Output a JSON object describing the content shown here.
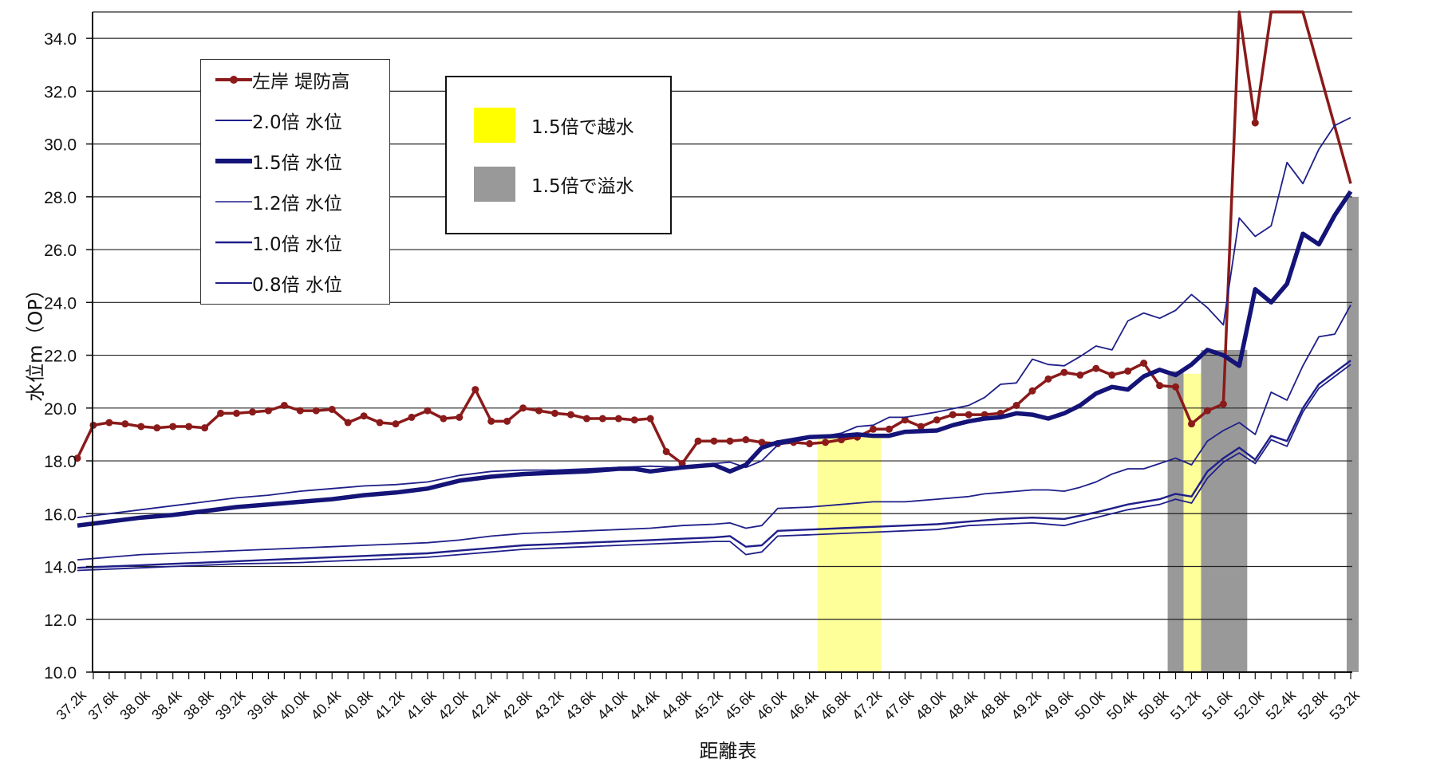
{
  "chart_data": {
    "type": "line",
    "xlabel": "距離表",
    "ylabel": "水位m（OP）",
    "ylim": [
      10.0,
      35.0
    ],
    "yticks": [
      "10.0",
      "12.0",
      "14.0",
      "16.0",
      "18.0",
      "20.0",
      "22.0",
      "24.0",
      "26.0",
      "28.0",
      "30.0",
      "32.0",
      "34.0"
    ],
    "categories": [
      "37.2k",
      "37.6k",
      "38.0k",
      "38.4k",
      "38.8k",
      "39.2k",
      "39.6k",
      "40.0k",
      "40.4k",
      "40.8k",
      "41.2k",
      "41.6k",
      "42.0k",
      "42.4k",
      "42.8k",
      "43.2k",
      "43.6k",
      "44.0k",
      "44.4k",
      "44.8k",
      "45.2k",
      "45.6k",
      "46.0k",
      "46.4k",
      "46.8k",
      "47.2k",
      "47.6k",
      "48.0k",
      "48.4k",
      "48.8k",
      "49.2k",
      "49.6k",
      "50.0k",
      "50.4k",
      "50.8k",
      "51.2k",
      "51.6k",
      "52.0k",
      "52.4k",
      "52.8k",
      "53.2k"
    ],
    "grid": true,
    "series": [
      {
        "name": "左岸 堤防高",
        "color": "#8b1a1a",
        "style": "marker",
        "x": [
          37.2,
          37.4,
          37.6,
          37.8,
          38.0,
          38.2,
          38.4,
          38.6,
          38.8,
          39.0,
          39.2,
          39.4,
          39.6,
          39.8,
          40.0,
          40.2,
          40.4,
          40.6,
          40.8,
          41.0,
          41.2,
          41.4,
          41.6,
          41.8,
          42.0,
          42.2,
          42.4,
          42.6,
          42.8,
          43.0,
          43.2,
          43.4,
          43.6,
          43.8,
          44.0,
          44.2,
          44.4,
          44.6,
          44.8,
          45.0,
          45.2,
          45.4,
          45.6,
          45.8,
          46.0,
          46.2,
          46.4,
          46.6,
          46.8,
          47.0,
          47.2,
          47.4,
          47.6,
          47.8,
          48.0,
          48.2,
          48.4,
          48.6,
          48.8,
          49.0,
          49.2,
          49.4,
          49.6,
          49.8,
          50.0,
          50.2,
          50.4,
          50.6,
          50.8,
          51.0,
          51.2,
          51.4,
          51.6,
          51.8,
          52.0,
          52.2,
          52.4,
          52.6,
          53.2
        ],
        "values": [
          18.1,
          19.35,
          19.45,
          19.4,
          19.3,
          19.25,
          19.3,
          19.3,
          19.25,
          19.8,
          19.8,
          19.85,
          19.9,
          20.1,
          19.9,
          19.9,
          19.95,
          19.45,
          19.7,
          19.45,
          19.4,
          19.65,
          19.9,
          19.6,
          19.65,
          20.7,
          19.5,
          19.5,
          20.0,
          19.9,
          19.8,
          19.75,
          19.6,
          19.6,
          19.6,
          19.55,
          19.6,
          18.35,
          17.9,
          18.75,
          18.75,
          18.75,
          18.8,
          18.7,
          18.65,
          18.7,
          18.65,
          18.7,
          18.8,
          18.9,
          19.2,
          19.2,
          19.55,
          19.3,
          19.55,
          19.75,
          19.75,
          19.75,
          19.8,
          20.1,
          20.65,
          21.1,
          21.35,
          21.25,
          21.5,
          21.25,
          21.4,
          21.7,
          20.85,
          20.8,
          19.4,
          19.9,
          20.15,
          35.0,
          30.8,
          35.0,
          35.0,
          35.0,
          28.5
        ]
      },
      {
        "name": "2.0倍 水位",
        "color": "#1f1f8a",
        "width": 1.8,
        "x": [
          37.2,
          37.6,
          38.0,
          38.4,
          38.8,
          39.2,
          39.6,
          40.0,
          40.4,
          40.8,
          41.2,
          41.6,
          42.0,
          42.4,
          42.8,
          43.2,
          43.6,
          44.0,
          44.4,
          44.8,
          45.2,
          45.4,
          45.6,
          45.8,
          46.0,
          46.4,
          46.8,
          47.0,
          47.2,
          47.4,
          47.6,
          48.0,
          48.4,
          48.6,
          48.8,
          49.0,
          49.2,
          49.4,
          49.6,
          49.8,
          50.0,
          50.2,
          50.4,
          50.6,
          50.8,
          51.0,
          51.2,
          51.4,
          51.6,
          51.8,
          52.0,
          52.2,
          52.4,
          52.6,
          52.8,
          53.0,
          53.2
        ],
        "values": [
          15.85,
          16.0,
          16.15,
          16.3,
          16.45,
          16.6,
          16.7,
          16.85,
          16.95,
          17.05,
          17.1,
          17.2,
          17.45,
          17.6,
          17.65,
          17.65,
          17.7,
          17.75,
          17.8,
          17.75,
          17.9,
          17.95,
          17.75,
          18.0,
          18.6,
          18.85,
          19.05,
          19.3,
          19.35,
          19.65,
          19.65,
          19.85,
          20.1,
          20.4,
          20.9,
          20.95,
          21.85,
          21.65,
          21.6,
          21.95,
          22.35,
          22.2,
          23.3,
          23.6,
          23.4,
          23.7,
          24.3,
          23.8,
          23.15,
          27.2,
          26.5,
          26.9,
          29.3,
          28.5,
          29.8,
          30.7,
          31.0
        ]
      },
      {
        "name": "1.5倍 水位",
        "color": "#141478",
        "width": 5.5,
        "x": [
          37.2,
          37.6,
          38.0,
          38.4,
          38.8,
          39.2,
          39.6,
          40.0,
          40.4,
          40.8,
          41.2,
          41.6,
          42.0,
          42.4,
          42.8,
          43.2,
          43.6,
          44.0,
          44.2,
          44.4,
          44.8,
          45.2,
          45.4,
          45.6,
          45.8,
          46.0,
          46.4,
          46.8,
          47.0,
          47.2,
          47.4,
          47.6,
          48.0,
          48.2,
          48.4,
          48.6,
          48.8,
          49.0,
          49.2,
          49.4,
          49.6,
          49.8,
          50.0,
          50.2,
          50.4,
          50.6,
          50.8,
          51.0,
          51.2,
          51.4,
          51.6,
          51.8,
          52.0,
          52.2,
          52.4,
          52.6,
          52.8,
          53.0,
          53.2
        ],
        "values": [
          15.55,
          15.7,
          15.85,
          15.95,
          16.1,
          16.25,
          16.35,
          16.45,
          16.55,
          16.7,
          16.8,
          16.95,
          17.25,
          17.4,
          17.5,
          17.55,
          17.6,
          17.7,
          17.7,
          17.6,
          17.75,
          17.85,
          17.6,
          17.85,
          18.5,
          18.7,
          18.9,
          18.95,
          19.0,
          18.95,
          18.95,
          19.1,
          19.15,
          19.35,
          19.5,
          19.6,
          19.65,
          19.8,
          19.75,
          19.6,
          19.8,
          20.1,
          20.55,
          20.8,
          20.7,
          21.2,
          21.45,
          21.25,
          21.65,
          22.2,
          22.0,
          21.6,
          24.5,
          24.0,
          24.7,
          26.6,
          26.2,
          27.3,
          28.2
        ]
      },
      {
        "name": "1.2倍 水位",
        "color": "#1f1f8a",
        "width": 1.8,
        "x": [
          37.2,
          37.6,
          38.0,
          38.4,
          38.8,
          39.2,
          39.6,
          40.0,
          40.4,
          40.8,
          41.2,
          41.6,
          42.0,
          42.4,
          42.8,
          43.2,
          43.6,
          44.0,
          44.4,
          44.8,
          45.2,
          45.4,
          45.6,
          45.8,
          46.0,
          46.4,
          46.8,
          47.0,
          47.2,
          47.6,
          48.0,
          48.4,
          48.6,
          48.8,
          49.2,
          49.4,
          49.6,
          49.8,
          50.0,
          50.2,
          50.4,
          50.6,
          50.8,
          51.0,
          51.2,
          51.4,
          51.6,
          51.8,
          52.0,
          52.2,
          52.4,
          52.6,
          52.8,
          53.0,
          53.2
        ],
        "values": [
          14.25,
          14.35,
          14.45,
          14.5,
          14.55,
          14.6,
          14.65,
          14.7,
          14.75,
          14.8,
          14.85,
          14.9,
          15.0,
          15.15,
          15.25,
          15.3,
          15.35,
          15.4,
          15.45,
          15.55,
          15.6,
          15.65,
          15.45,
          15.55,
          16.2,
          16.25,
          16.35,
          16.4,
          16.45,
          16.45,
          16.55,
          16.65,
          16.75,
          16.8,
          16.9,
          16.9,
          16.85,
          17.0,
          17.2,
          17.5,
          17.7,
          17.7,
          17.9,
          18.1,
          17.85,
          18.75,
          19.15,
          19.45,
          19.0,
          20.6,
          20.3,
          21.6,
          22.7,
          22.8,
          23.9
        ]
      },
      {
        "name": "1.0倍 水位",
        "color": "#1f1f8a",
        "width": 2.4,
        "x": [
          37.2,
          37.6,
          38.0,
          38.4,
          38.8,
          39.2,
          39.6,
          40.0,
          40.4,
          40.8,
          41.2,
          41.6,
          42.0,
          42.4,
          42.8,
          43.2,
          43.6,
          44.0,
          44.4,
          44.8,
          45.2,
          45.4,
          45.6,
          45.8,
          46.0,
          46.4,
          46.8,
          47.2,
          47.6,
          48.0,
          48.4,
          48.8,
          49.2,
          49.6,
          50.0,
          50.4,
          50.8,
          51.0,
          51.2,
          51.4,
          51.6,
          51.8,
          52.0,
          52.2,
          52.4,
          52.6,
          52.8,
          53.0,
          53.2
        ],
        "values": [
          13.95,
          14.0,
          14.05,
          14.1,
          14.15,
          14.2,
          14.25,
          14.3,
          14.35,
          14.4,
          14.45,
          14.5,
          14.6,
          14.7,
          14.8,
          14.85,
          14.9,
          14.95,
          15.0,
          15.05,
          15.1,
          15.15,
          14.75,
          14.8,
          15.35,
          15.4,
          15.45,
          15.5,
          15.55,
          15.6,
          15.7,
          15.8,
          15.85,
          15.8,
          16.05,
          16.35,
          16.55,
          16.75,
          16.65,
          17.6,
          18.1,
          18.5,
          18.05,
          18.95,
          18.75,
          20.0,
          20.9,
          21.35,
          21.8
        ]
      },
      {
        "name": "0.8倍 水位",
        "color": "#1f1f8a",
        "width": 1.8,
        "x": [
          37.2,
          37.6,
          38.0,
          38.4,
          38.8,
          39.2,
          39.6,
          40.0,
          40.4,
          40.8,
          41.2,
          41.6,
          42.0,
          42.4,
          42.8,
          43.2,
          43.6,
          44.0,
          44.4,
          44.8,
          45.2,
          45.4,
          45.6,
          45.8,
          46.0,
          46.4,
          46.8,
          47.2,
          47.6,
          48.0,
          48.4,
          48.8,
          49.2,
          49.6,
          50.0,
          50.4,
          50.8,
          51.0,
          51.2,
          51.4,
          51.6,
          51.8,
          52.0,
          52.2,
          52.4,
          52.6,
          52.8,
          53.0,
          53.2
        ],
        "values": [
          13.85,
          13.9,
          13.95,
          14.0,
          14.05,
          14.1,
          14.12,
          14.15,
          14.2,
          14.25,
          14.3,
          14.35,
          14.45,
          14.55,
          14.65,
          14.7,
          14.75,
          14.8,
          14.85,
          14.9,
          14.95,
          14.95,
          14.45,
          14.55,
          15.15,
          15.2,
          15.25,
          15.3,
          15.35,
          15.4,
          15.55,
          15.6,
          15.65,
          15.55,
          15.85,
          16.15,
          16.35,
          16.55,
          16.4,
          17.35,
          17.95,
          18.3,
          17.9,
          18.8,
          18.55,
          19.85,
          20.75,
          21.2,
          21.65
        ]
      }
    ],
    "bands": [
      {
        "name": "1.5倍で越水",
        "color": "#ffff99",
        "x0": 46.5,
        "x1": 47.3,
        "ytop": 19.0
      },
      {
        "name": "1.5倍で溢水",
        "color": "#999999",
        "x0": 50.9,
        "x1": 51.1,
        "ytop": 21.4
      },
      {
        "name": "1.5倍で越水",
        "color": "#ffff99",
        "x0": 51.1,
        "x1": 51.32,
        "ytop": 21.3
      },
      {
        "name": "1.5倍で溢水",
        "color": "#999999",
        "x0": 51.32,
        "x1": 51.9,
        "ytop": 22.2
      },
      {
        "name": "1.5倍で溢水",
        "color": "#999999",
        "x0": 53.15,
        "x1": 53.3,
        "ytop": 28.0
      }
    ]
  },
  "legend": {
    "lines": [
      {
        "label": "左岸 堤防高",
        "color": "#8b1a1a",
        "width": 4,
        "marker": true
      },
      {
        "label": "2.0倍 水位",
        "color": "#1f1f8a",
        "width": 2,
        "marker": false
      },
      {
        "label": "1.5倍 水位",
        "color": "#141478",
        "width": 6,
        "marker": false
      },
      {
        "label": "1.2倍 水位",
        "color": "#1f1f8a",
        "width": 1.6,
        "marker": false
      },
      {
        "label": "1.0倍 水位",
        "color": "#1f1f8a",
        "width": 2.6,
        "marker": false
      },
      {
        "label": "0.8倍 水位",
        "color": "#1f1f8a",
        "width": 2,
        "marker": false
      }
    ],
    "fills": [
      {
        "label": "1.5倍で越水",
        "color": "#ffff00"
      },
      {
        "label": "1.5倍で溢水",
        "color": "#999999"
      }
    ]
  }
}
